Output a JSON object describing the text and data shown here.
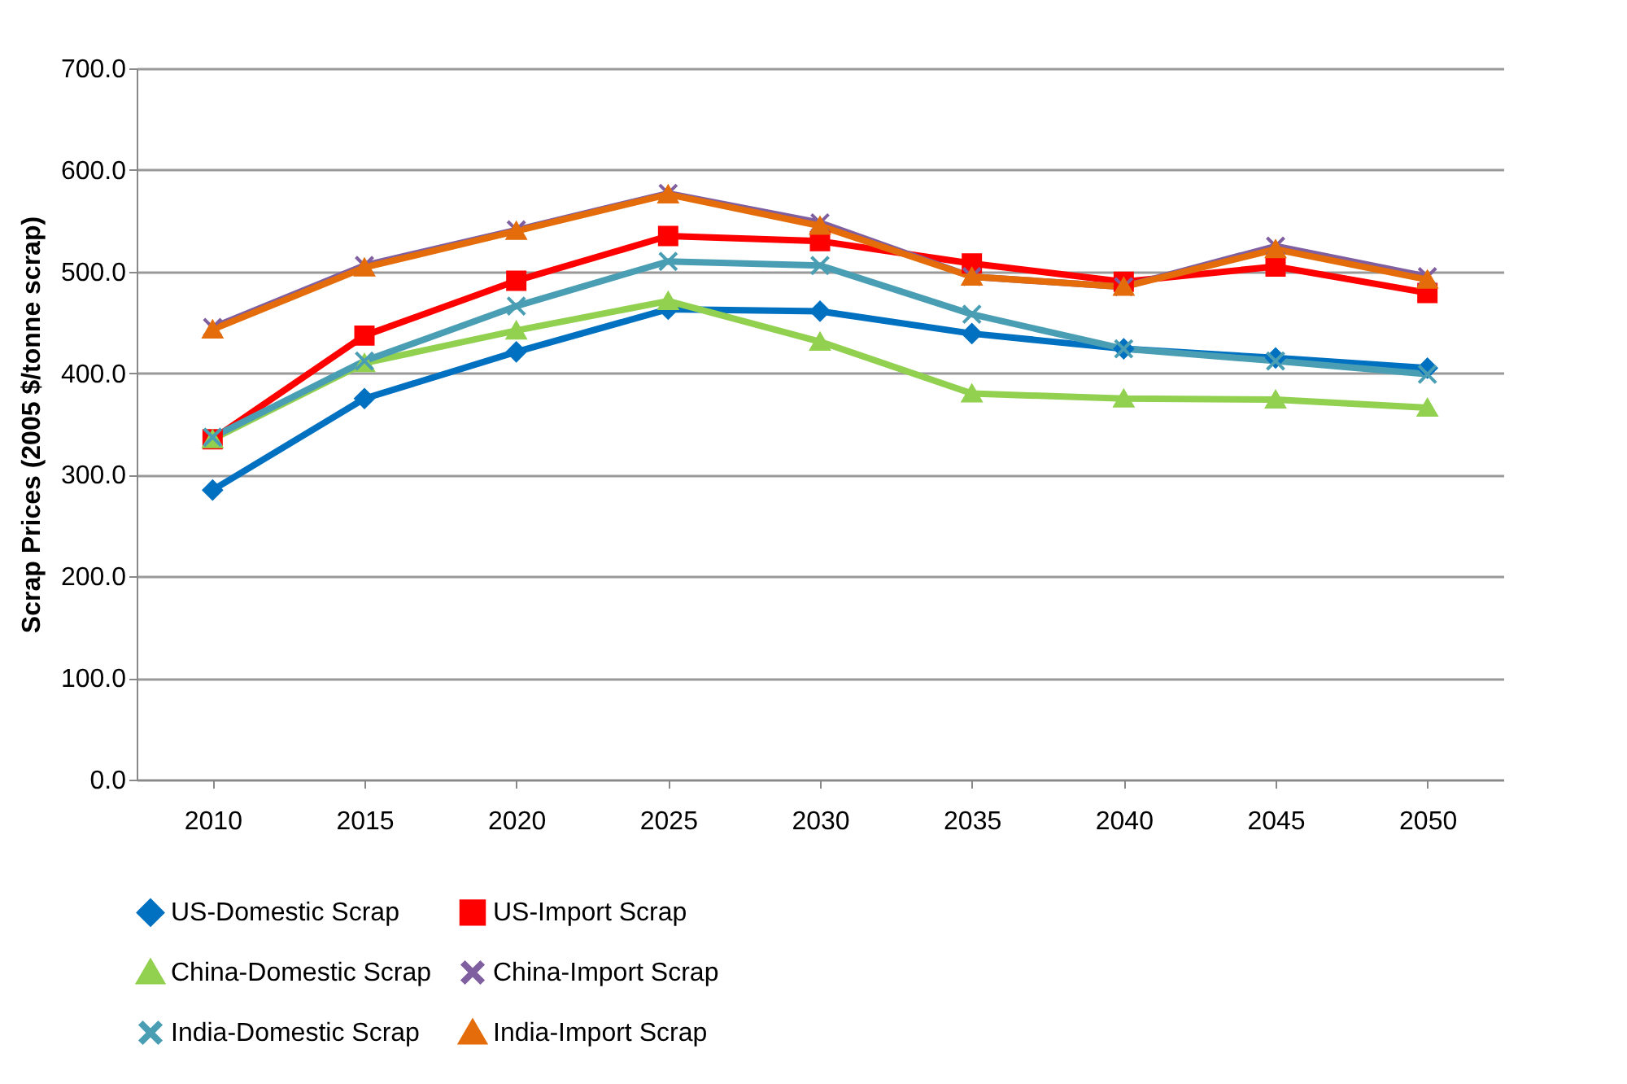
{
  "chart_data": {
    "type": "line",
    "ylabel": "Scrap Prices (2005 $/tonne scrap)",
    "categories": [
      "2010",
      "2015",
      "2020",
      "2025",
      "2030",
      "2035",
      "2040",
      "2045",
      "2050"
    ],
    "series": [
      {
        "name": "US-Domestic Scrap",
        "color": "#0070c0",
        "marker": "diamond",
        "values": [
          285,
          375,
          421,
          463,
          461,
          439,
          424,
          415,
          405
        ]
      },
      {
        "name": "US-Import Scrap",
        "color": "#ff0000",
        "marker": "square",
        "values": [
          335,
          437,
          491,
          535,
          530,
          508,
          490,
          505,
          479
        ]
      },
      {
        "name": "China-Domestic Scrap",
        "color": "#92d050",
        "marker": "triangle",
        "values": [
          335,
          410,
          442,
          471,
          431,
          380,
          375,
          374,
          366
        ]
      },
      {
        "name": "China-Import Scrap",
        "color": "#7f5fa0",
        "marker": "cross",
        "values": [
          445,
          506,
          541,
          577,
          548,
          495,
          485,
          525,
          495
        ]
      },
      {
        "name": "India-Domestic Scrap",
        "color": "#4a9eb4",
        "marker": "cross",
        "values": [
          337,
          412,
          466,
          510,
          506,
          458,
          424,
          412,
          399
        ]
      },
      {
        "name": "India-Import Scrap",
        "color": "#e46c0a",
        "marker": "triangle",
        "values": [
          443,
          504,
          540,
          576,
          545,
          495,
          485,
          522,
          492
        ]
      }
    ],
    "ylim": [
      0,
      700
    ],
    "yticks": [
      {
        "value": 0,
        "label": "0.0"
      },
      {
        "value": 100,
        "label": "100.0"
      },
      {
        "value": 200,
        "label": "200.0"
      },
      {
        "value": 300,
        "label": "300.0"
      },
      {
        "value": 400,
        "label": "400.0"
      },
      {
        "value": 500,
        "label": "500.0"
      },
      {
        "value": 600,
        "label": "600.0"
      },
      {
        "value": 700,
        "label": "700.0"
      }
    ],
    "grid": "y",
    "legend": "bottom"
  }
}
